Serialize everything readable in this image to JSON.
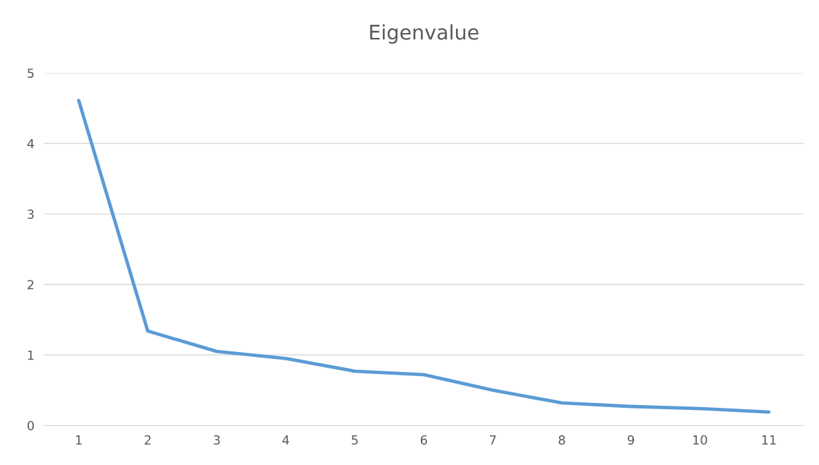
{
  "chart_data": {
    "type": "line",
    "title": "Eigenvalue",
    "categories": [
      "1",
      "2",
      "3",
      "4",
      "5",
      "6",
      "7",
      "8",
      "9",
      "10",
      "11"
    ],
    "series": [
      {
        "color": "#5b9bd5",
        "values": [
          4.61,
          1.34,
          1.05,
          0.95,
          0.77,
          0.72,
          0.5,
          0.32,
          0.27,
          0.24,
          0.19
        ]
      }
    ],
    "ylim": [
      0,
      5
    ],
    "yticks": [
      0,
      1,
      2,
      3,
      4,
      5
    ],
    "grid": "y",
    "marker": "none",
    "line_style": "solid"
  }
}
